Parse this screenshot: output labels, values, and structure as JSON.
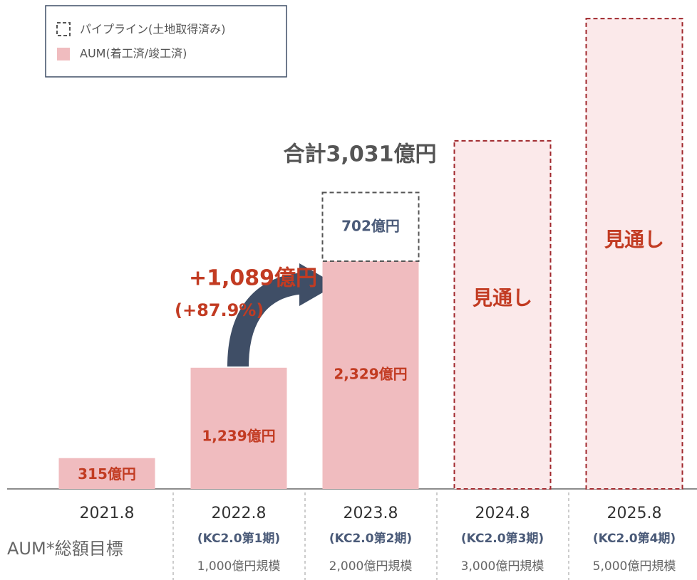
{
  "chart_data": {
    "type": "stacked_bar",
    "categories": [
      "2021.8",
      "2022.8",
      "2023.8",
      "2024.8",
      "2025.8"
    ],
    "sub_labels": [
      null,
      "(KC2.0第1期)",
      "(KC2.0第2期)",
      "(KC2.0第3期)",
      "(KC2.0第4期)"
    ],
    "targets": [
      null,
      "1,000億円規模",
      "2,000億円規模",
      "3,000億円規模",
      "5,000億円規模"
    ],
    "target_row_label": "AUM*総額目標",
    "series": [
      {
        "name": "AUM(着工済/竣工済)",
        "color": "#f0bcbf",
        "values": [
          315,
          1239,
          2329,
          null,
          null
        ],
        "value_labels": [
          "315億円",
          "1,239億円",
          "2,329億円",
          null,
          null
        ]
      },
      {
        "name": "パイプライン(土地取得済み)",
        "color": "#555555",
        "values": [
          null,
          null,
          702,
          null,
          null
        ],
        "value_labels": [
          null,
          null,
          "702億円",
          null,
          null
        ]
      }
    ],
    "forecast": {
      "label": "見通し",
      "color": "#a0282d",
      "values": [
        null,
        null,
        null,
        3560,
        4810
      ]
    },
    "annotations": {
      "total": "合計3,031億円",
      "increase": "+1,089億円",
      "increase_pct": "(+87.9%)"
    },
    "ylim": [
      0,
      5000
    ],
    "legend": "top-left"
  }
}
